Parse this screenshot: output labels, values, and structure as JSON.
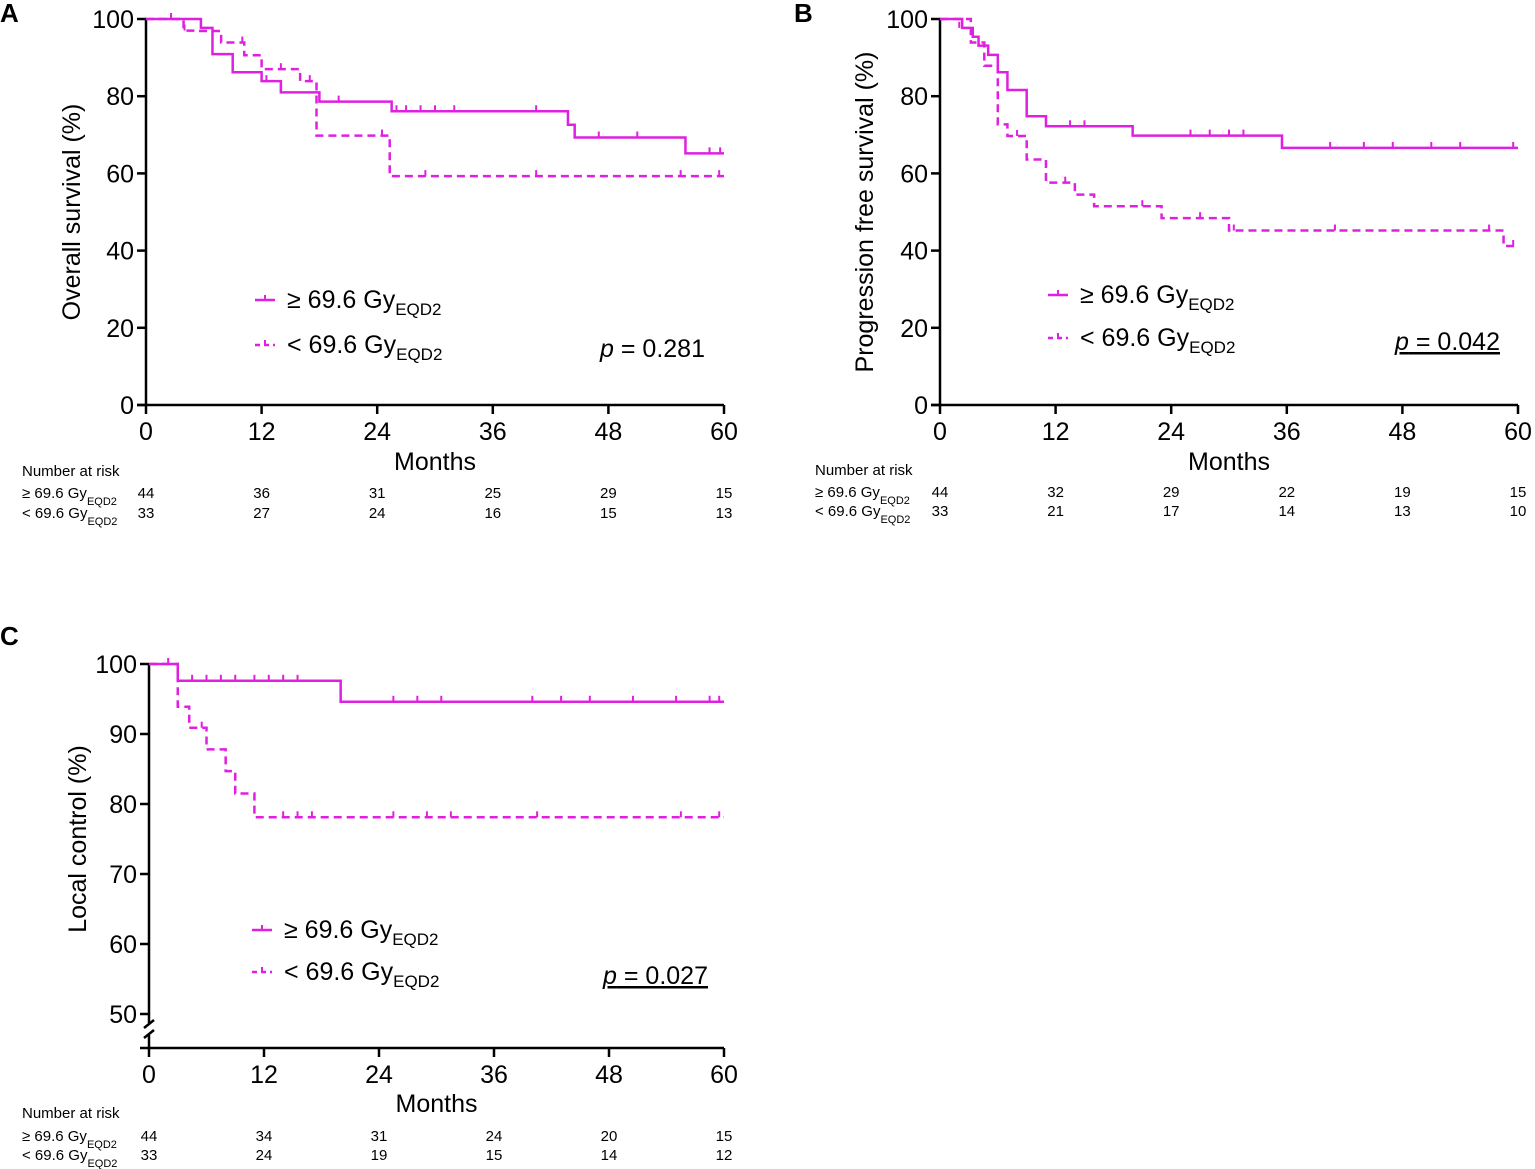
{
  "figure": {
    "colors": {
      "series": "#e020e0",
      "axis": "#000000"
    },
    "risk_title": "Number at risk",
    "series_names": {
      "high": "≥ 69.6 Gy",
      "low": "< 69.6 Gy"
    },
    "series_subscript": "EQD2"
  },
  "chart_data": [
    {
      "type": "line",
      "panel": "A",
      "ylabel": "Overall survival (%)",
      "xlabel": "Months",
      "xlim": [
        0,
        60
      ],
      "ylim": [
        0,
        100
      ],
      "yticks": [
        0,
        20,
        40,
        60,
        80,
        100
      ],
      "xticks": [
        0,
        12,
        24,
        36,
        48,
        60
      ],
      "axis_break": false,
      "legend": {
        "high": "≥ 69.6 Gy",
        "low": "< 69.6 Gy",
        "subscript": "EQD2",
        "placement": "lower-left"
      },
      "p_label": "p",
      "p_value": " = 0.281",
      "p_underlined": false,
      "series": [
        {
          "name": "≥ 69.6 GyEQD2",
          "style": "solid",
          "steps": [
            [
              0,
              100
            ],
            [
              5.7,
              97.7
            ],
            [
              6.9,
              90.9
            ],
            [
              9.0,
              86.2
            ],
            [
              12.0,
              83.9
            ],
            [
              14.0,
              81.0
            ],
            [
              18.0,
              78.6
            ],
            [
              25.5,
              76.1
            ],
            [
              43.8,
              72.6
            ],
            [
              44.5,
              69.3
            ],
            [
              56.0,
              65.2
            ],
            [
              60,
              65.2
            ]
          ],
          "censored": [
            [
              2.6,
              100
            ],
            [
              12.5,
              83.9
            ],
            [
              20.0,
              78.6
            ],
            [
              26.0,
              76.1
            ],
            [
              27.0,
              76.1
            ],
            [
              28.5,
              76.1
            ],
            [
              30.0,
              76.1
            ],
            [
              32.0,
              76.1
            ],
            [
              40.5,
              76.1
            ],
            [
              47.0,
              69.3
            ],
            [
              51.0,
              69.3
            ],
            [
              58.5,
              65.2
            ],
            [
              59.6,
              65.2
            ]
          ]
        },
        {
          "name": "< 69.6 GyEQD2",
          "style": "dashed",
          "steps": [
            [
              0,
              100
            ],
            [
              3.9,
              97.0
            ],
            [
              5.4,
              96.9
            ],
            [
              7.8,
              93.9
            ],
            [
              10.2,
              90.6
            ],
            [
              12.0,
              87.0
            ],
            [
              16.0,
              83.9
            ],
            [
              17.7,
              69.8
            ],
            [
              25.3,
              59.3
            ],
            [
              60,
              59.3
            ]
          ],
          "censored": [
            [
              4.0,
              97.0
            ],
            [
              10.0,
              93.9
            ],
            [
              14.0,
              87.0
            ],
            [
              17.0,
              83.9
            ],
            [
              24.5,
              69.8
            ],
            [
              29.0,
              59.3
            ],
            [
              40.5,
              59.3
            ],
            [
              55.5,
              59.3
            ],
            [
              59.5,
              59.3
            ]
          ]
        }
      ],
      "risk_x": [
        0,
        12,
        24,
        36,
        48,
        60
      ],
      "risk_rows": [
        {
          "label": "≥ 69.6 Gy",
          "sub": "EQD2",
          "values": [
            "44",
            "36",
            "31",
            "25",
            "29",
            "15"
          ]
        },
        {
          "label": "< 69.6 Gy",
          "sub": "EQD2",
          "values": [
            "33",
            "27",
            "24",
            "16",
            "15",
            "13"
          ]
        }
      ]
    },
    {
      "type": "line",
      "panel": "B",
      "ylabel": "Progression free survival (%)",
      "xlabel": "Months",
      "xlim": [
        0,
        60
      ],
      "ylim": [
        0,
        100
      ],
      "yticks": [
        0,
        20,
        40,
        60,
        80,
        100
      ],
      "xticks": [
        0,
        12,
        24,
        36,
        48,
        60
      ],
      "axis_break": false,
      "legend": {
        "high": "≥ 69.6 Gy",
        "low": "< 69.6 Gy",
        "subscript": "EQD2",
        "placement": "lower-left"
      },
      "p_label": "p",
      "p_value": " = 0.042",
      "p_underlined": true,
      "series": [
        {
          "name": "≥ 69.6 GyEQD2",
          "style": "solid",
          "steps": [
            [
              0,
              100
            ],
            [
              2.3,
              97.7
            ],
            [
              3.4,
              95.4
            ],
            [
              4.0,
              93.1
            ],
            [
              5.0,
              90.7
            ],
            [
              6.0,
              86.2
            ],
            [
              7.0,
              81.6
            ],
            [
              9.0,
              74.8
            ],
            [
              11.0,
              72.2
            ],
            [
              20.0,
              69.8
            ],
            [
              35.5,
              66.6
            ],
            [
              60,
              66.6
            ]
          ],
          "censored": [
            [
              2.0,
              97.7
            ],
            [
              13.5,
              72.2
            ],
            [
              15.0,
              72.2
            ],
            [
              26.0,
              69.8
            ],
            [
              28.0,
              69.8
            ],
            [
              30.0,
              69.8
            ],
            [
              31.5,
              69.8
            ],
            [
              40.5,
              66.6
            ],
            [
              44.0,
              66.6
            ],
            [
              47.0,
              66.6
            ],
            [
              51.0,
              66.6
            ],
            [
              54.0,
              66.6
            ],
            [
              59.5,
              66.6
            ]
          ]
        },
        {
          "name": "< 69.6 GyEQD2",
          "style": "dashed",
          "steps": [
            [
              0,
              100
            ],
            [
              3.2,
              93.9
            ],
            [
              4.6,
              87.9
            ],
            [
              6.0,
              72.7
            ],
            [
              7.0,
              69.7
            ],
            [
              9.0,
              63.6
            ],
            [
              11.0,
              57.6
            ],
            [
              14.0,
              54.5
            ],
            [
              16.0,
              51.5
            ],
            [
              23.0,
              48.4
            ],
            [
              30.0,
              45.2
            ],
            [
              58.5,
              41.2
            ],
            [
              60,
              41.2
            ]
          ],
          "censored": [
            [
              8.0,
              69.7
            ],
            [
              13.0,
              57.6
            ],
            [
              21.0,
              51.5
            ],
            [
              27.0,
              48.4
            ],
            [
              30.5,
              45.2
            ],
            [
              41.0,
              45.2
            ],
            [
              57.0,
              45.2
            ],
            [
              59.5,
              41.2
            ]
          ]
        }
      ],
      "risk_x": [
        0,
        12,
        24,
        36,
        48,
        60
      ],
      "risk_rows": [
        {
          "label": "≥ 69.6 Gy",
          "sub": "EQD2",
          "values": [
            "44",
            "32",
            "29",
            "22",
            "19",
            "15"
          ]
        },
        {
          "label": "< 69.6 Gy",
          "sub": "EQD2",
          "values": [
            "33",
            "21",
            "17",
            "14",
            "13",
            "10"
          ]
        }
      ]
    },
    {
      "type": "line",
      "panel": "C",
      "ylabel": "Local control (%)",
      "xlabel": "Months",
      "xlim": [
        0,
        60
      ],
      "ylim": [
        50,
        100
      ],
      "yticks": [
        50,
        60,
        70,
        80,
        90,
        100
      ],
      "xticks": [
        0,
        12,
        24,
        36,
        48,
        60
      ],
      "axis_break": true,
      "legend": {
        "high": "≥ 69.6 Gy",
        "low": "< 69.6 Gy",
        "subscript": "EQD2",
        "placement": "lower-left"
      },
      "p_label": "p",
      "p_value": " = 0.027",
      "p_underlined": true,
      "series": [
        {
          "name": "≥ 69.6 GyEQD2",
          "style": "solid",
          "steps": [
            [
              0,
              100
            ],
            [
              3.0,
              97.6
            ],
            [
              20.0,
              94.6
            ],
            [
              60,
              94.6
            ]
          ],
          "censored": [
            [
              2.0,
              100
            ],
            [
              4.5,
              97.6
            ],
            [
              6.0,
              97.6
            ],
            [
              7.5,
              97.6
            ],
            [
              9.0,
              97.6
            ],
            [
              11.0,
              97.6
            ],
            [
              12.5,
              97.6
            ],
            [
              14.0,
              97.6
            ],
            [
              15.5,
              97.6
            ],
            [
              25.5,
              94.6
            ],
            [
              28.0,
              94.6
            ],
            [
              30.5,
              94.6
            ],
            [
              40.0,
              94.6
            ],
            [
              43.0,
              94.6
            ],
            [
              46.0,
              94.6
            ],
            [
              50.5,
              94.6
            ],
            [
              55.0,
              94.6
            ],
            [
              58.5,
              94.6
            ],
            [
              59.5,
              94.6
            ]
          ]
        },
        {
          "name": "< 69.6 GyEQD2",
          "style": "dashed",
          "steps": [
            [
              0,
              100
            ],
            [
              3.0,
              93.9
            ],
            [
              4.2,
              90.9
            ],
            [
              6.0,
              87.8
            ],
            [
              8.0,
              84.7
            ],
            [
              9.0,
              81.5
            ],
            [
              11.0,
              78.1
            ],
            [
              60,
              78.1
            ]
          ],
          "censored": [
            [
              5.5,
              90.9
            ],
            [
              14.0,
              78.1
            ],
            [
              15.5,
              78.1
            ],
            [
              17.0,
              78.1
            ],
            [
              25.5,
              78.1
            ],
            [
              29.0,
              78.1
            ],
            [
              31.5,
              78.1
            ],
            [
              40.5,
              78.1
            ],
            [
              55.5,
              78.1
            ],
            [
              59.5,
              78.1
            ]
          ]
        }
      ],
      "risk_x": [
        0,
        12,
        24,
        36,
        48,
        60
      ],
      "risk_rows": [
        {
          "label": "≥ 69.6 Gy",
          "sub": "EQD2",
          "values": [
            "44",
            "34",
            "31",
            "24",
            "20",
            "15"
          ]
        },
        {
          "label": "< 69.6 Gy",
          "sub": "EQD2",
          "values": [
            "33",
            "24",
            "19",
            "15",
            "14",
            "12"
          ]
        }
      ]
    }
  ]
}
